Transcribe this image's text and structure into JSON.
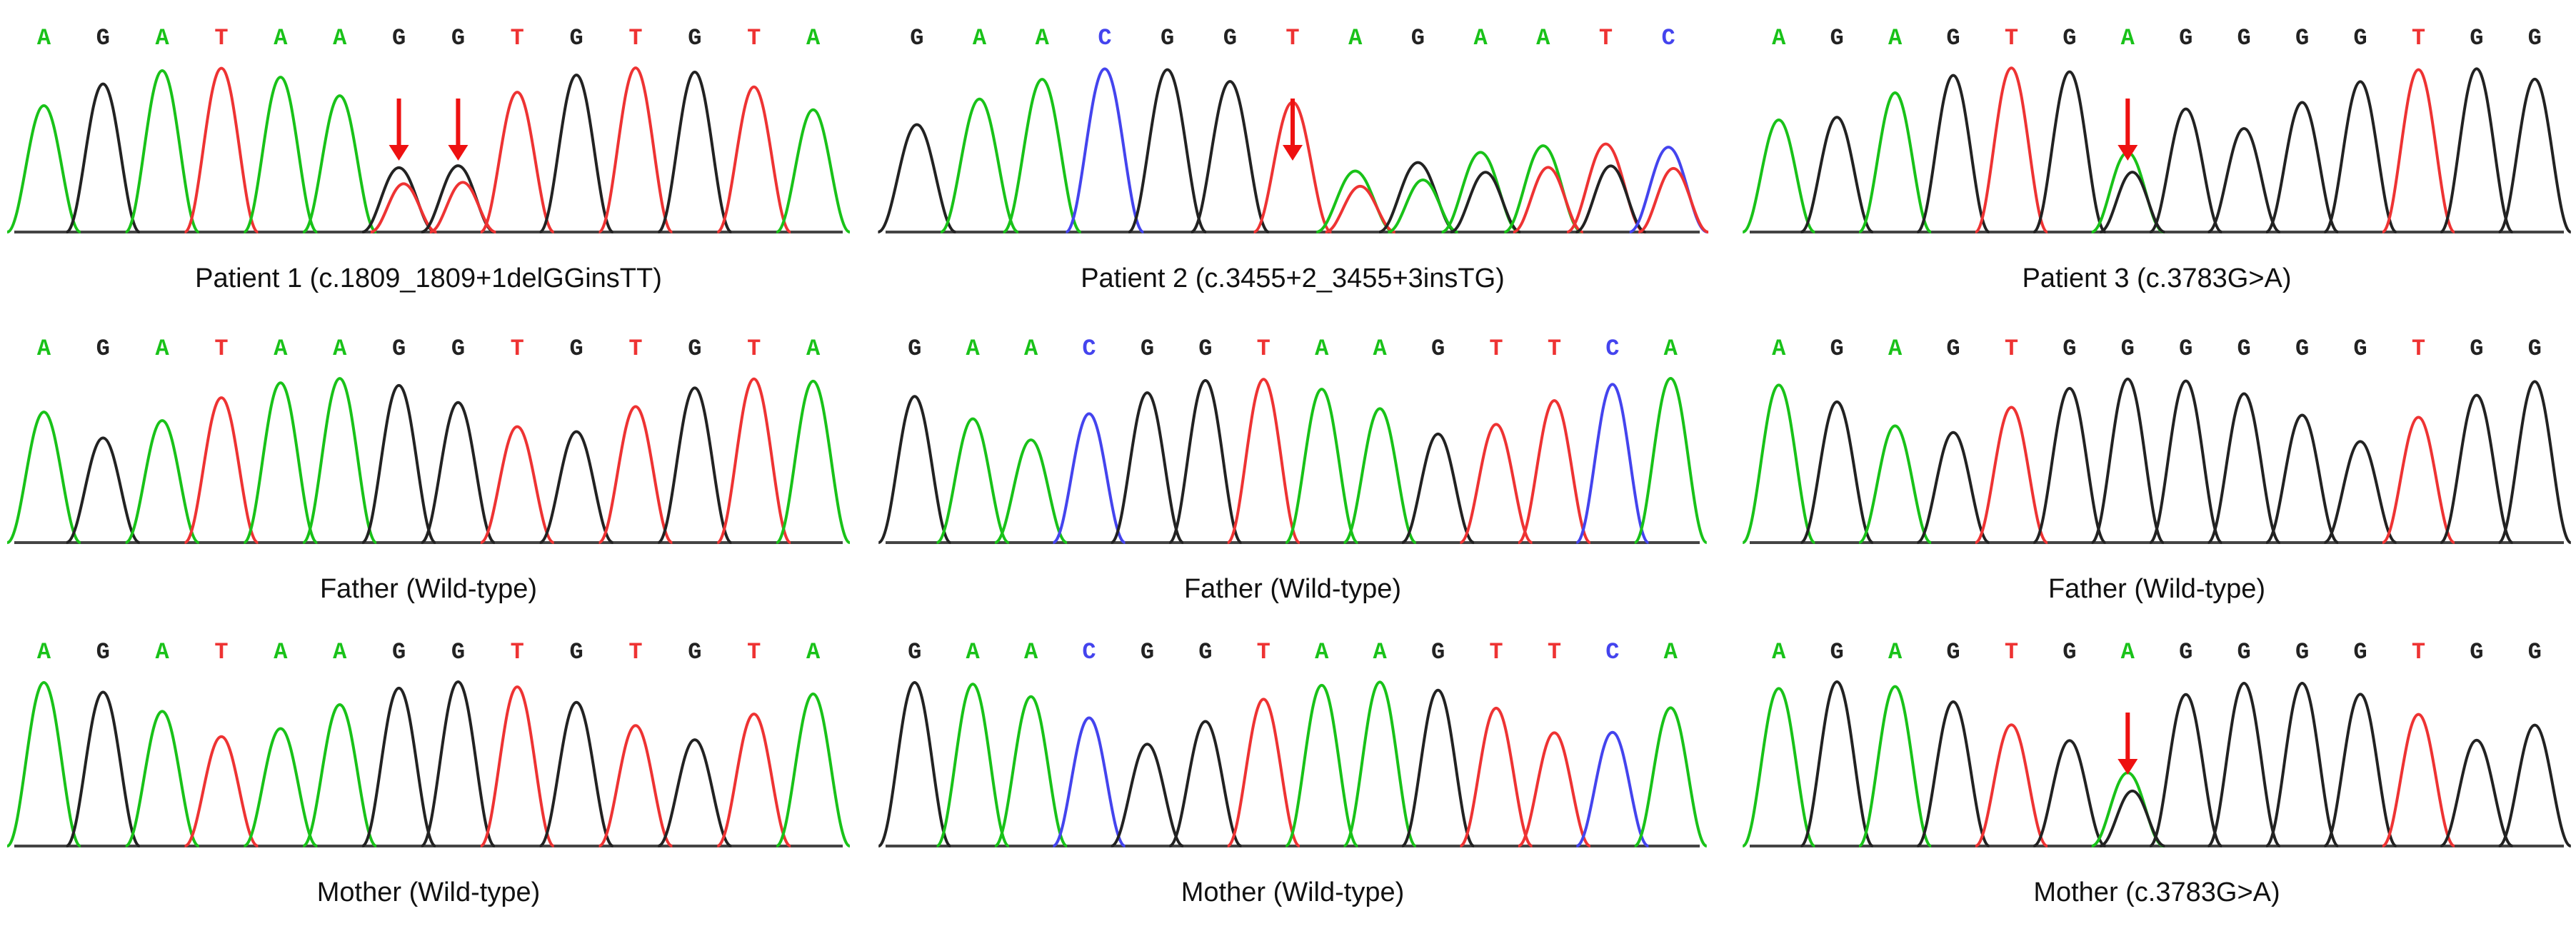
{
  "colors": {
    "A": "#19c219",
    "G": "#222222",
    "T": "#ee3333",
    "C": "#4444ee",
    "arrow": "#ee1111",
    "baseline": "#444444"
  },
  "panels": [
    {
      "caption": "Patient 1 (c.1809_1809+1delGGinsTT)",
      "bases": [
        "A",
        "G",
        "A",
        "T",
        "A",
        "A",
        "G",
        "G",
        "T",
        "G",
        "T",
        "G",
        "T",
        "A"
      ],
      "arrows_at": [
        6,
        7
      ],
      "overlaps": [
        {
          "index": 6,
          "base": "T"
        },
        {
          "index": 7,
          "base": "T"
        }
      ]
    },
    {
      "caption": "Patient 2 (c.3455+2_3455+3insTG)",
      "bases": [
        "G",
        "A",
        "A",
        "C",
        "G",
        "G",
        "T",
        "A",
        "G",
        "A",
        "A",
        "T",
        "C"
      ],
      "arrows_at": [
        6
      ],
      "overlaps": [
        {
          "index": 7,
          "base": "T"
        },
        {
          "index": 8,
          "base": "A"
        },
        {
          "index": 9,
          "base": "G"
        },
        {
          "index": 10,
          "base": "T"
        },
        {
          "index": 11,
          "base": "G"
        },
        {
          "index": 12,
          "base": "T"
        }
      ]
    },
    {
      "caption": "Patient 3 (c.3783G>A)",
      "bases": [
        "A",
        "G",
        "A",
        "G",
        "T",
        "G",
        "A",
        "G",
        "G",
        "G",
        "G",
        "T",
        "G",
        "G"
      ],
      "arrows_at": [
        6
      ],
      "overlaps": [
        {
          "index": 6,
          "base": "G"
        }
      ]
    },
    {
      "caption": "Father (Wild-type)",
      "bases": [
        "A",
        "G",
        "A",
        "T",
        "A",
        "A",
        "G",
        "G",
        "T",
        "G",
        "T",
        "G",
        "T",
        "A"
      ],
      "arrows_at": [],
      "overlaps": []
    },
    {
      "caption": "Father (Wild-type)",
      "bases": [
        "G",
        "A",
        "A",
        "C",
        "G",
        "G",
        "T",
        "A",
        "A",
        "G",
        "T",
        "T",
        "C",
        "A"
      ],
      "arrows_at": [],
      "overlaps": []
    },
    {
      "caption": "Father (Wild-type)",
      "bases": [
        "A",
        "G",
        "A",
        "G",
        "T",
        "G",
        "G",
        "G",
        "G",
        "G",
        "G",
        "T",
        "G",
        "G"
      ],
      "arrows_at": [],
      "overlaps": []
    },
    {
      "caption": "Mother (Wild-type)",
      "bases": [
        "A",
        "G",
        "A",
        "T",
        "A",
        "A",
        "G",
        "G",
        "T",
        "G",
        "T",
        "G",
        "T",
        "A"
      ],
      "arrows_at": [],
      "overlaps": []
    },
    {
      "caption": "Mother (Wild-type)",
      "bases": [
        "G",
        "A",
        "A",
        "C",
        "G",
        "G",
        "T",
        "A",
        "A",
        "G",
        "T",
        "T",
        "C",
        "A"
      ],
      "arrows_at": [],
      "overlaps": []
    },
    {
      "caption": "Mother (c.3783G>A)",
      "bases": [
        "A",
        "G",
        "A",
        "G",
        "T",
        "G",
        "A",
        "G",
        "G",
        "G",
        "G",
        "T",
        "G",
        "G"
      ],
      "arrows_at": [
        6
      ],
      "overlaps": [
        {
          "index": 6,
          "base": "G"
        }
      ]
    }
  ]
}
